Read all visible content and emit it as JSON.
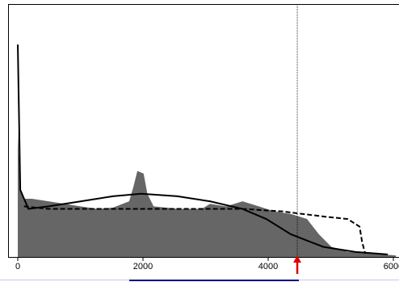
{
  "chart_data": {
    "type": "area",
    "x": [
      0,
      40,
      100,
      230,
      490,
      750,
      1000,
      1270,
      1520,
      1780,
      1850,
      1910,
      2010,
      2070,
      2170,
      2560,
      2940,
      3070,
      3330,
      3590,
      3850,
      4100,
      4360,
      4620,
      4810,
      5010,
      5270,
      5650,
      6040
    ],
    "values": [
      50,
      27,
      23,
      23,
      22,
      21,
      20,
      19,
      19.5,
      22,
      28,
      34,
      33,
      25,
      20,
      19,
      19,
      21,
      20,
      22,
      20,
      18,
      17,
      15,
      9,
      4,
      2,
      1.3,
      0.6
    ],
    "color": "#666666",
    "lines": [
      {
        "x": [
          0,
          40,
          170,
          490,
          1010,
          1520,
          1970,
          2550,
          3070,
          3590,
          3970,
          4360,
          4880,
          5390,
          5910
        ],
        "values": [
          84,
          26.5,
          19,
          20,
          22,
          24,
          25,
          24,
          22,
          19,
          15,
          9,
          4,
          2,
          1
        ],
        "color": "#000000",
        "dashed": false
      },
      {
        "x": [
          100,
          490,
          1000,
          2300,
          3590,
          4230,
          4880,
          5270,
          5460,
          5500,
          5550
        ],
        "values": [
          20,
          19,
          19,
          19,
          19,
          18,
          16,
          15,
          12,
          6,
          1.3
        ],
        "color": "#000000",
        "dashed": true
      }
    ],
    "marker_x": 4465,
    "xlim": [
      -155,
      6090
    ],
    "ylim": [
      0,
      100
    ],
    "xticks": [
      0,
      2000,
      4000,
      6000
    ]
  }
}
